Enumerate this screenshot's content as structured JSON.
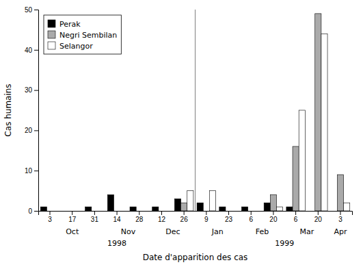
{
  "chart_data": {
    "type": "bar",
    "title": "",
    "ylabel": "Cas humains",
    "xlabel": "Date d'apparition des cas",
    "categories": [
      "3",
      "17",
      "31",
      "14",
      "28",
      "12",
      "26",
      "9",
      "23",
      "6",
      "20",
      "6",
      "20",
      "3"
    ],
    "series": [
      {
        "name": "Perak",
        "color": "#000000",
        "values": [
          1,
          0,
          1,
          4,
          1,
          1,
          3,
          2,
          1,
          1,
          2,
          1,
          0,
          0
        ]
      },
      {
        "name": "Negri Sembilan",
        "color": "#aaaaaa",
        "values": [
          0,
          0,
          0,
          0,
          0,
          0,
          2,
          0,
          0,
          0,
          4,
          16,
          49,
          9
        ]
      },
      {
        "name": "Selangor",
        "color": "#ffffff",
        "values": [
          0,
          0,
          0,
          0,
          0,
          0,
          5,
          5,
          0,
          0,
          1,
          25,
          44,
          2
        ]
      }
    ],
    "month_labels": [
      {
        "label": "Oct",
        "x": 1.0
      },
      {
        "label": "Nov",
        "x": 3.5
      },
      {
        "label": "Dec",
        "x": 5.5
      },
      {
        "label": "Jan",
        "x": 7.5
      },
      {
        "label": "Feb",
        "x": 9.5
      },
      {
        "label": "Mar",
        "x": 11.5
      },
      {
        "label": "Apr",
        "x": 13.0
      }
    ],
    "year_labels": [
      {
        "label": "1998",
        "x": 3.0
      },
      {
        "label": "1999",
        "x": 10.5
      }
    ],
    "separator": {
      "x": 6.5,
      "color": "gray"
    },
    "ylim": [
      0,
      50
    ],
    "yticks": [
      0,
      10,
      20,
      30,
      40,
      50
    ],
    "grid": false,
    "legend": "upper left"
  }
}
